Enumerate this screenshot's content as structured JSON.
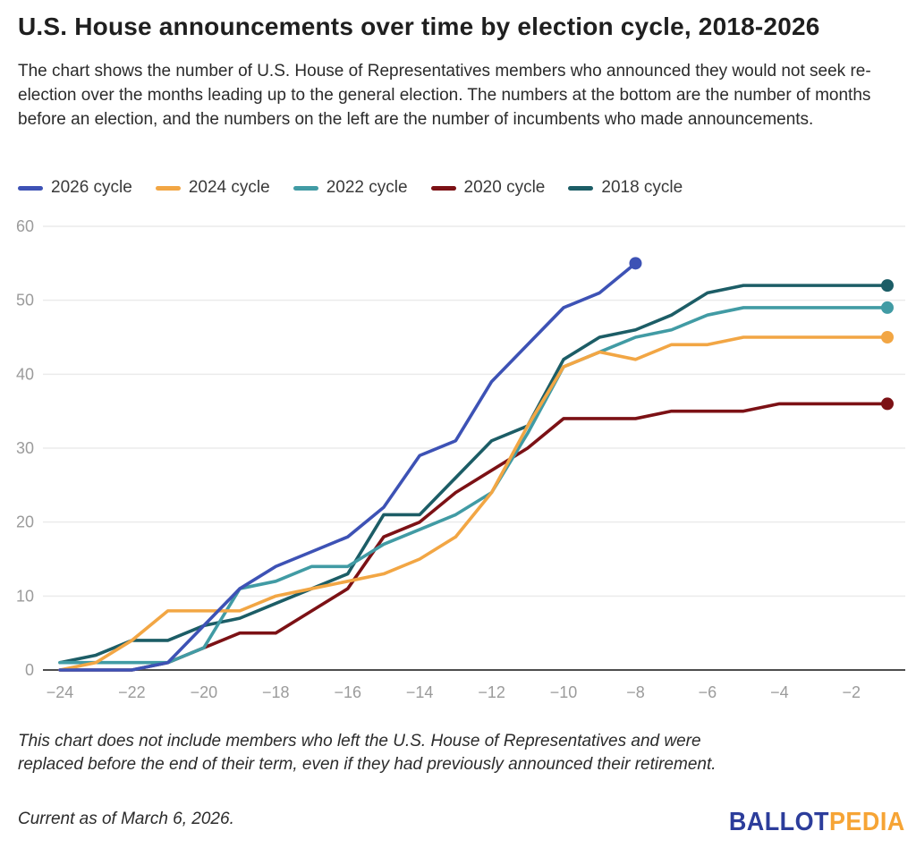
{
  "header": {
    "title": "U.S. House announcements over time by election cycle, 2018-2026",
    "description": "The chart shows the number of U.S. House of Representatives members who announced they would not seek re-election over the months leading up to the general election. The numbers at the bottom are the number of months before an election, and the numbers on the left are the number of incumbents who made announcements."
  },
  "legend": [
    {
      "label": "2026 cycle",
      "color": "#3d52b5"
    },
    {
      "label": "2024 cycle",
      "color": "#f2a644"
    },
    {
      "label": "2022 cycle",
      "color": "#419ba4"
    },
    {
      "label": "2020 cycle",
      "color": "#7c1115"
    },
    {
      "label": "2018 cycle",
      "color": "#1c5d66"
    }
  ],
  "chart_data": {
    "type": "line",
    "title": "U.S. House announcements over time by election cycle, 2018-2026",
    "xlabel": "months before an election",
    "ylabel": "number of incumbents who made announcements",
    "x": [
      -24,
      -23,
      -22,
      -21,
      -20,
      -19,
      -18,
      -17,
      -16,
      -15,
      -14,
      -13,
      -12,
      -11,
      -10,
      -9,
      -8,
      -7,
      -6,
      -5,
      -4,
      -3,
      -2,
      -1
    ],
    "xtick_labels": [
      "−24",
      "−22",
      "−20",
      "−18",
      "−16",
      "−14",
      "−12",
      "−10",
      "−8",
      "−6",
      "−4",
      "−2"
    ],
    "xtick_values": [
      -24,
      -22,
      -20,
      -18,
      -16,
      -14,
      -12,
      -10,
      -8,
      -6,
      -4,
      -2
    ],
    "ytick_values": [
      0,
      10,
      20,
      30,
      40,
      50,
      60
    ],
    "ylim": [
      0,
      60
    ],
    "xlim": [
      -24.5,
      -0.5
    ],
    "grid": "horizontal",
    "legend_position": "top-left",
    "series": [
      {
        "name": "2026 cycle",
        "color": "#3d52b5",
        "end_dot": true,
        "values": [
          0,
          0,
          0,
          1,
          6,
          11,
          14,
          16,
          18,
          22,
          29,
          31,
          39,
          44,
          49,
          51,
          55
        ]
      },
      {
        "name": "2024 cycle",
        "color": "#f2a644",
        "end_dot": true,
        "values": [
          0,
          1,
          4,
          8,
          8,
          8,
          10,
          11,
          12,
          13,
          15,
          18,
          24,
          33,
          41,
          43,
          42,
          44,
          44,
          45,
          45,
          45,
          45,
          45
        ]
      },
      {
        "name": "2022 cycle",
        "color": "#419ba4",
        "end_dot": true,
        "values": [
          1,
          1,
          1,
          1,
          3,
          11,
          12,
          14,
          14,
          17,
          19,
          21,
          24,
          32,
          41,
          43,
          45,
          46,
          48,
          49,
          49,
          49,
          49,
          49
        ]
      },
      {
        "name": "2020 cycle",
        "color": "#7c1115",
        "end_dot": true,
        "values": [
          0,
          0,
          0,
          1,
          3,
          5,
          5,
          8,
          11,
          18,
          20,
          24,
          27,
          30,
          34,
          34,
          34,
          35,
          35,
          35,
          36,
          36,
          36,
          36
        ]
      },
      {
        "name": "2018 cycle",
        "color": "#1c5d66",
        "end_dot": true,
        "values": [
          1,
          2,
          4,
          4,
          6,
          7,
          9,
          11,
          13,
          21,
          21,
          26,
          31,
          33,
          42,
          45,
          46,
          48,
          51,
          52,
          52,
          52,
          52,
          52
        ]
      }
    ],
    "axis_colors": {
      "tick_label": "#9b9b9b",
      "gridline": "#ebebeb",
      "zero_line": "#4d4d4d"
    }
  },
  "footnote": "This chart does not include members who left the U.S. House of Representatives and were replaced before the end of their term, even if they had previously announced their retirement.",
  "as_of": "Current as of March 6, 2026.",
  "logo": {
    "ballot": "BALLOT",
    "pedia": "PEDIA",
    "ballot_color": "#2c3d9b",
    "pedia_color": "#f6a435"
  }
}
